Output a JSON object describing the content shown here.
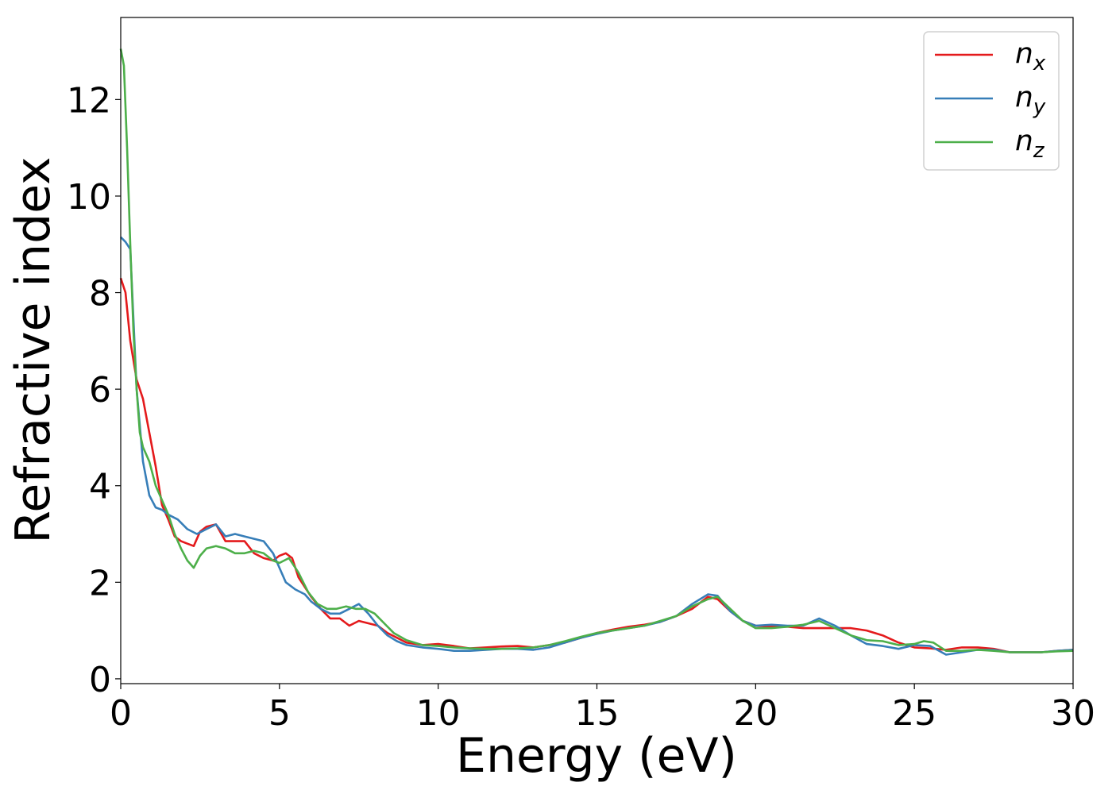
{
  "chart_data": {
    "type": "line",
    "title": "",
    "xlabel": "Energy (eV)",
    "ylabel": "Refractive index",
    "xlim": [
      0,
      30
    ],
    "ylim": [
      -0.1,
      13.7
    ],
    "xticks": [
      0,
      5,
      10,
      15,
      20,
      25,
      30
    ],
    "yticks": [
      0,
      2,
      4,
      6,
      8,
      10,
      12
    ],
    "grid": false,
    "legend_position": "top-right",
    "series": [
      {
        "name": "n",
        "subscript": "x",
        "color": "#e41a1c",
        "x": [
          0,
          0.15,
          0.3,
          0.5,
          0.7,
          0.9,
          1.1,
          1.3,
          1.5,
          1.7,
          1.9,
          2.1,
          2.3,
          2.5,
          2.7,
          3.0,
          3.3,
          3.6,
          3.9,
          4.2,
          4.5,
          4.8,
          5.0,
          5.2,
          5.4,
          5.6,
          5.8,
          6.0,
          6.3,
          6.6,
          6.9,
          7.2,
          7.5,
          7.8,
          8.1,
          8.4,
          8.7,
          9.0,
          9.5,
          10.0,
          10.5,
          11.0,
          11.5,
          12.0,
          12.5,
          13.0,
          13.5,
          14.0,
          14.5,
          15.0,
          15.5,
          16.0,
          16.5,
          17.0,
          17.5,
          18.0,
          18.5,
          18.8,
          19.2,
          19.6,
          20.0,
          20.5,
          21.0,
          21.5,
          22.0,
          22.5,
          23.0,
          23.5,
          24.0,
          24.5,
          25.0,
          25.5,
          26.0,
          26.5,
          27.0,
          27.5,
          28.0,
          28.5,
          29.0,
          29.5,
          30.0
        ],
        "y": [
          8.3,
          8.0,
          7.0,
          6.2,
          5.8,
          5.1,
          4.4,
          3.6,
          3.3,
          2.95,
          2.85,
          2.8,
          2.75,
          3.05,
          3.15,
          3.2,
          2.85,
          2.85,
          2.85,
          2.6,
          2.5,
          2.45,
          2.55,
          2.6,
          2.5,
          2.1,
          1.9,
          1.7,
          1.45,
          1.25,
          1.25,
          1.1,
          1.2,
          1.15,
          1.1,
          0.95,
          0.85,
          0.75,
          0.7,
          0.72,
          0.68,
          0.63,
          0.65,
          0.67,
          0.68,
          0.65,
          0.7,
          0.75,
          0.85,
          0.95,
          1.02,
          1.08,
          1.12,
          1.18,
          1.3,
          1.45,
          1.7,
          1.65,
          1.4,
          1.2,
          1.1,
          1.08,
          1.08,
          1.05,
          1.05,
          1.05,
          1.05,
          1.0,
          0.9,
          0.75,
          0.65,
          0.63,
          0.6,
          0.65,
          0.65,
          0.62,
          0.55,
          0.55,
          0.55,
          0.58,
          0.6
        ]
      },
      {
        "name": "n",
        "subscript": "y",
        "color": "#377eb8",
        "x": [
          0,
          0.15,
          0.3,
          0.5,
          0.7,
          0.9,
          1.1,
          1.3,
          1.5,
          1.8,
          2.1,
          2.4,
          2.7,
          3.0,
          3.3,
          3.6,
          3.9,
          4.2,
          4.5,
          4.8,
          5.0,
          5.2,
          5.5,
          5.8,
          6.0,
          6.3,
          6.6,
          6.9,
          7.2,
          7.5,
          7.8,
          8.1,
          8.4,
          8.7,
          9.0,
          9.5,
          10.0,
          10.5,
          11.0,
          11.5,
          12.0,
          12.5,
          13.0,
          13.5,
          14.0,
          14.5,
          15.0,
          15.5,
          16.0,
          16.5,
          17.0,
          17.5,
          18.0,
          18.5,
          18.8,
          19.2,
          19.6,
          20.0,
          20.5,
          21.0,
          21.5,
          22.0,
          22.5,
          23.0,
          23.5,
          24.0,
          24.5,
          25.0,
          25.5,
          26.0,
          26.5,
          27.0,
          27.5,
          28.0,
          28.5,
          29.0,
          29.5,
          30.0
        ],
        "y": [
          9.15,
          9.05,
          8.9,
          6.0,
          4.5,
          3.8,
          3.55,
          3.5,
          3.4,
          3.3,
          3.1,
          3.0,
          3.1,
          3.2,
          2.95,
          3.0,
          2.95,
          2.9,
          2.85,
          2.6,
          2.3,
          2.0,
          1.85,
          1.75,
          1.6,
          1.45,
          1.35,
          1.35,
          1.45,
          1.55,
          1.35,
          1.1,
          0.9,
          0.78,
          0.7,
          0.65,
          0.62,
          0.58,
          0.58,
          0.6,
          0.62,
          0.62,
          0.6,
          0.65,
          0.75,
          0.85,
          0.93,
          1.0,
          1.05,
          1.1,
          1.18,
          1.3,
          1.55,
          1.75,
          1.72,
          1.4,
          1.2,
          1.1,
          1.12,
          1.1,
          1.1,
          1.25,
          1.1,
          0.9,
          0.72,
          0.68,
          0.62,
          0.7,
          0.68,
          0.5,
          0.55,
          0.6,
          0.6,
          0.55,
          0.55,
          0.55,
          0.58,
          0.6
        ]
      },
      {
        "name": "n",
        "subscript": "z",
        "color": "#4daf4a",
        "x": [
          0,
          0.1,
          0.2,
          0.3,
          0.4,
          0.5,
          0.6,
          0.7,
          0.9,
          1.1,
          1.3,
          1.5,
          1.7,
          1.9,
          2.1,
          2.3,
          2.5,
          2.7,
          3.0,
          3.3,
          3.6,
          3.9,
          4.2,
          4.5,
          4.8,
          5.0,
          5.3,
          5.6,
          5.9,
          6.2,
          6.5,
          6.8,
          7.1,
          7.4,
          7.7,
          8.0,
          8.3,
          8.6,
          9.0,
          9.5,
          10.0,
          10.5,
          11.0,
          11.5,
          12.0,
          12.5,
          13.0,
          13.5,
          14.0,
          14.5,
          15.0,
          15.5,
          16.0,
          16.5,
          17.0,
          17.5,
          18.0,
          18.5,
          18.8,
          19.2,
          19.6,
          20.0,
          20.5,
          21.0,
          21.5,
          22.0,
          22.5,
          23.0,
          23.5,
          24.0,
          24.5,
          25.0,
          25.3,
          25.6,
          26.0,
          26.5,
          27.0,
          27.5,
          28.0,
          28.5,
          29.0,
          29.5,
          30.0
        ],
        "y": [
          13.05,
          12.7,
          11.0,
          9.0,
          7.2,
          6.0,
          5.1,
          4.8,
          4.5,
          4.0,
          3.7,
          3.4,
          3.0,
          2.7,
          2.45,
          2.3,
          2.55,
          2.7,
          2.75,
          2.7,
          2.6,
          2.6,
          2.65,
          2.6,
          2.45,
          2.4,
          2.5,
          2.2,
          1.8,
          1.55,
          1.45,
          1.45,
          1.5,
          1.45,
          1.45,
          1.35,
          1.15,
          0.95,
          0.8,
          0.7,
          0.68,
          0.65,
          0.63,
          0.62,
          0.62,
          0.63,
          0.65,
          0.7,
          0.78,
          0.87,
          0.95,
          1.0,
          1.05,
          1.1,
          1.2,
          1.3,
          1.5,
          1.65,
          1.7,
          1.45,
          1.2,
          1.05,
          1.05,
          1.08,
          1.12,
          1.2,
          1.05,
          0.9,
          0.8,
          0.78,
          0.7,
          0.72,
          0.78,
          0.75,
          0.58,
          0.58,
          0.6,
          0.58,
          0.55,
          0.55,
          0.55,
          0.57,
          0.58
        ]
      }
    ]
  }
}
